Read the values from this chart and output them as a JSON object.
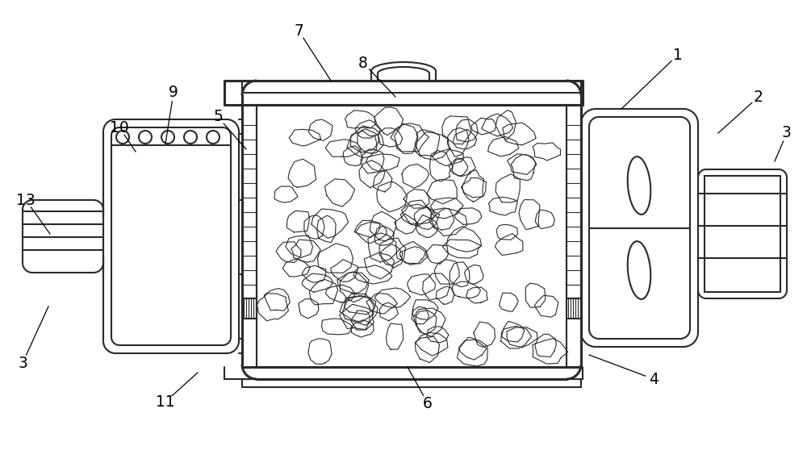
{
  "bg_color": "#ffffff",
  "line_color": "#2a2a2a",
  "line_width": 1.5,
  "thick_line": 2.2,
  "fig_width": 10.0,
  "fig_height": 5.79,
  "labels_data": [
    [
      "1",
      840,
      68,
      770,
      135
    ],
    [
      "2",
      940,
      120,
      890,
      165
    ],
    [
      "3",
      975,
      165,
      960,
      200
    ],
    [
      "3",
      28,
      450,
      60,
      380
    ],
    [
      "4",
      810,
      470,
      730,
      440
    ],
    [
      "5",
      270,
      145,
      305,
      185
    ],
    [
      "6",
      530,
      500,
      505,
      455
    ],
    [
      "7",
      370,
      38,
      410,
      100
    ],
    [
      "8",
      450,
      78,
      490,
      120
    ],
    [
      "9",
      215,
      115,
      205,
      178
    ],
    [
      "10",
      148,
      158,
      168,
      188
    ],
    [
      "11",
      205,
      498,
      245,
      462
    ],
    [
      "13",
      32,
      248,
      62,
      290
    ]
  ]
}
